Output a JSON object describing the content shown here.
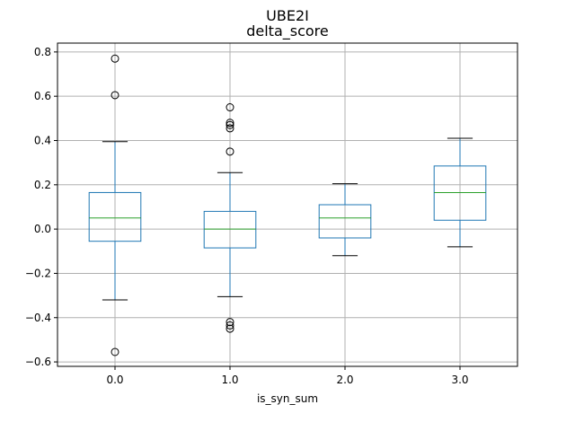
{
  "chart_data": {
    "type": "box",
    "suptitle": "UBE2I",
    "title": "delta_score",
    "xlabel": "is_syn_sum",
    "ylabel": "",
    "categories": [
      "0.0",
      "1.0",
      "2.0",
      "3.0"
    ],
    "ylim": [
      -0.62,
      0.84
    ],
    "yticks": [
      -0.6,
      -0.4,
      -0.2,
      0.0,
      0.2,
      0.4,
      0.6,
      0.8
    ],
    "ytick_labels": [
      "−0.6",
      "−0.4",
      "−0.2",
      "0.0",
      "0.2",
      "0.4",
      "0.6",
      "0.8"
    ],
    "grid": true,
    "colors": {
      "box": "#1f77b4",
      "median": "#2ca02c",
      "whisker": "#1f77b4",
      "cap": "#000000",
      "flier": "#000000",
      "grid": "#b0b0b0"
    },
    "boxes": [
      {
        "category": "0.0",
        "whislo": -0.32,
        "q1": -0.055,
        "med": 0.05,
        "q3": 0.165,
        "whishi": 0.395,
        "fliers": [
          0.77,
          0.605,
          -0.555
        ]
      },
      {
        "category": "1.0",
        "whislo": -0.305,
        "q1": -0.085,
        "med": 0.0,
        "q3": 0.08,
        "whishi": 0.255,
        "fliers": [
          0.55,
          0.48,
          0.47,
          0.455,
          0.35,
          -0.42,
          -0.435,
          -0.45
        ]
      },
      {
        "category": "2.0",
        "whislo": -0.12,
        "q1": -0.04,
        "med": 0.05,
        "q3": 0.11,
        "whishi": 0.205,
        "fliers": []
      },
      {
        "category": "3.0",
        "whislo": -0.08,
        "q1": 0.04,
        "med": 0.165,
        "q3": 0.285,
        "whishi": 0.41,
        "fliers": []
      }
    ]
  }
}
